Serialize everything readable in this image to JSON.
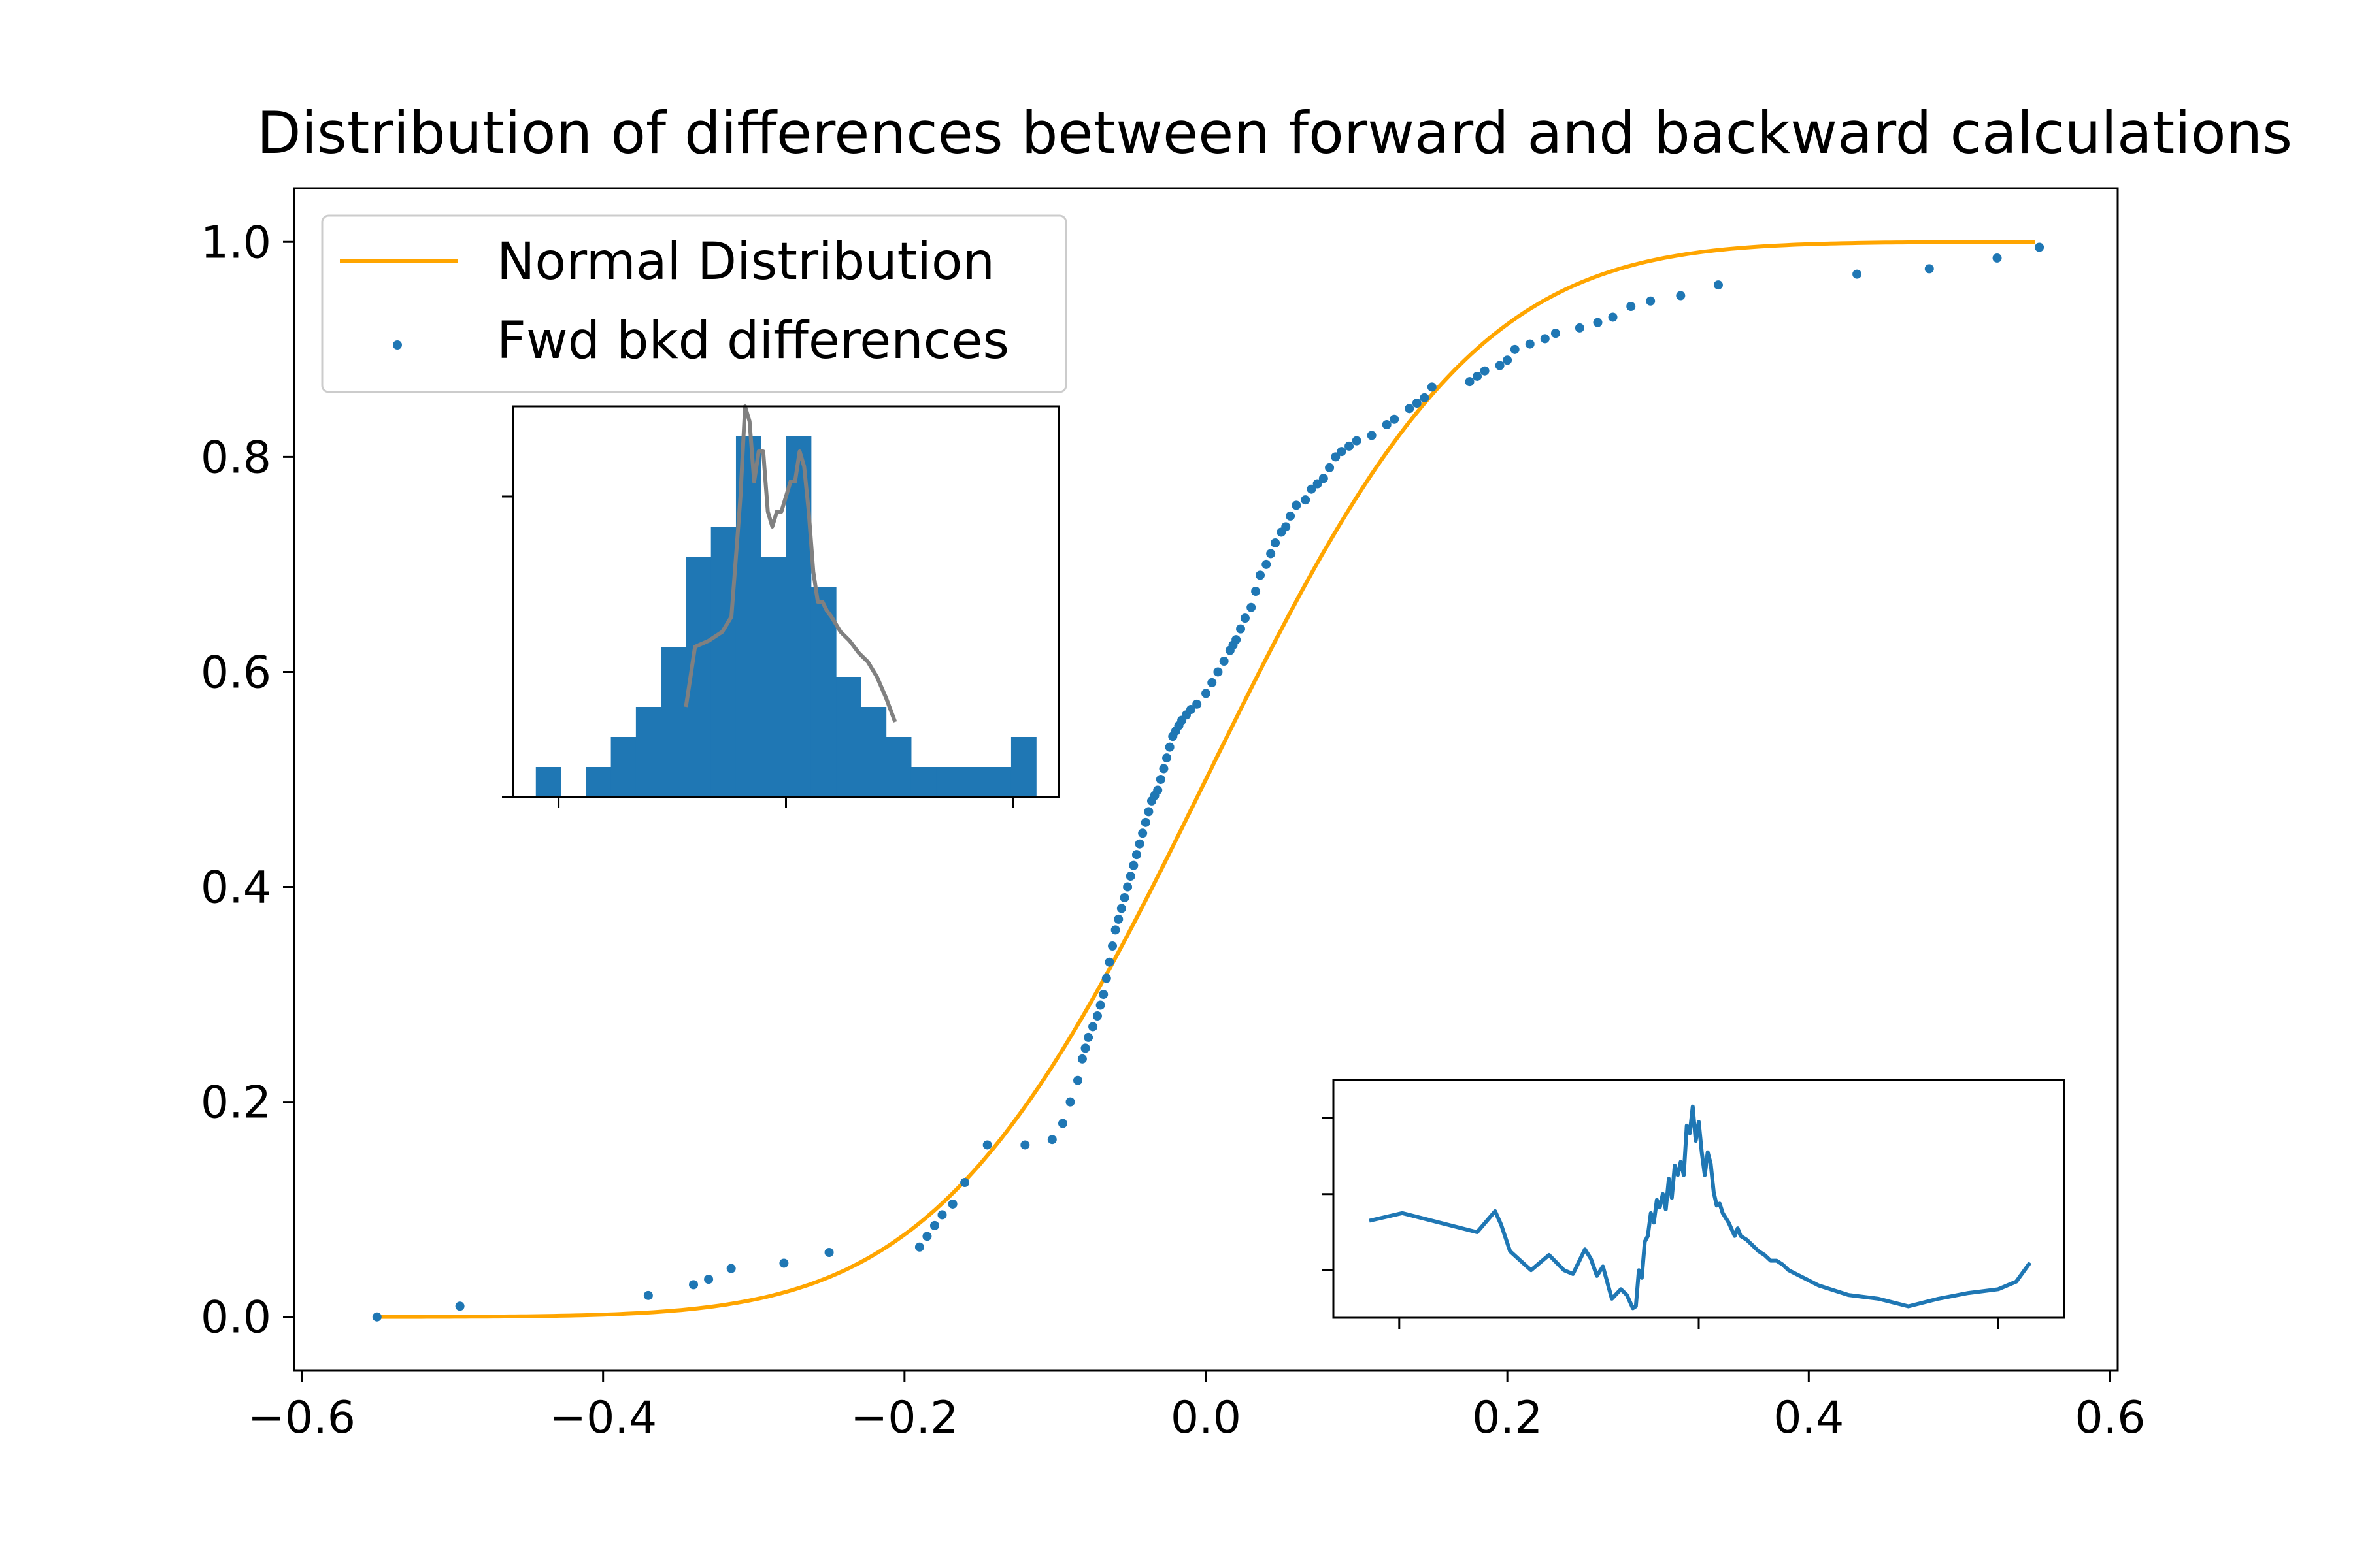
{
  "chart_data": {
    "type": "line",
    "title": "Distribution of differences between forward and backward calculations",
    "xlabel": "",
    "ylabel": "",
    "xlim": [
      -0.605,
      0.605
    ],
    "ylim": [
      -0.05,
      1.05
    ],
    "x_ticks": [
      -0.6,
      -0.4,
      -0.2,
      0.0,
      0.2,
      0.4,
      0.6
    ],
    "x_tick_labels": [
      "−0.6",
      "−0.4",
      "−0.2",
      "0.0",
      "0.2",
      "0.4",
      "0.6"
    ],
    "y_ticks": [
      0.0,
      0.2,
      0.4,
      0.6,
      0.8,
      1.0
    ],
    "y_tick_labels": [
      "0.0",
      "0.2",
      "0.4",
      "0.6",
      "0.8",
      "1.0"
    ],
    "legend_position": "upper-left",
    "colors": {
      "normal": "#FFA500",
      "points": "#1f77b4",
      "kde": "#808080",
      "hist": "#1f77b4"
    },
    "series": [
      {
        "name": "Normal Distribution",
        "kind": "line",
        "mean": 0.0,
        "std": 0.14,
        "x_range": [
          -0.55,
          0.55
        ]
      },
      {
        "name": "Fwd bkd differences",
        "kind": "scatter",
        "x": [
          -0.55,
          -0.495,
          -0.37,
          -0.34,
          -0.33,
          -0.315,
          -0.28,
          -0.25,
          -0.19,
          -0.185,
          -0.18,
          -0.175,
          -0.168,
          -0.16,
          -0.145,
          -0.12,
          -0.102,
          -0.095,
          -0.09,
          -0.085,
          -0.082,
          -0.08,
          -0.078,
          -0.075,
          -0.072,
          -0.07,
          -0.068,
          -0.066,
          -0.064,
          -0.062,
          -0.06,
          -0.058,
          -0.056,
          -0.054,
          -0.052,
          -0.05,
          -0.048,
          -0.046,
          -0.044,
          -0.042,
          -0.04,
          -0.038,
          -0.036,
          -0.034,
          -0.032,
          -0.03,
          -0.028,
          -0.026,
          -0.024,
          -0.022,
          -0.02,
          -0.018,
          -0.016,
          -0.013,
          -0.01,
          -0.006,
          0.0,
          0.004,
          0.008,
          0.012,
          0.016,
          0.018,
          0.02,
          0.023,
          0.026,
          0.03,
          0.033,
          0.036,
          0.04,
          0.043,
          0.046,
          0.05,
          0.053,
          0.056,
          0.06,
          0.066,
          0.07,
          0.074,
          0.078,
          0.082,
          0.086,
          0.09,
          0.095,
          0.1,
          0.11,
          0.12,
          0.125,
          0.135,
          0.14,
          0.145,
          0.15,
          0.175,
          0.18,
          0.185,
          0.195,
          0.2,
          0.205,
          0.215,
          0.225,
          0.232,
          0.248,
          0.26,
          0.27,
          0.282,
          0.295,
          0.315,
          0.34,
          0.432,
          0.48,
          0.525,
          0.553
        ],
        "y": [
          0.0,
          0.01,
          0.02,
          0.03,
          0.035,
          0.045,
          0.05,
          0.06,
          0.065,
          0.075,
          0.085,
          0.095,
          0.105,
          0.125,
          0.16,
          0.16,
          0.165,
          0.18,
          0.2,
          0.22,
          0.24,
          0.25,
          0.26,
          0.27,
          0.28,
          0.29,
          0.3,
          0.315,
          0.33,
          0.345,
          0.36,
          0.37,
          0.38,
          0.39,
          0.4,
          0.41,
          0.42,
          0.43,
          0.44,
          0.45,
          0.46,
          0.47,
          0.48,
          0.485,
          0.49,
          0.5,
          0.51,
          0.52,
          0.53,
          0.54,
          0.545,
          0.55,
          0.555,
          0.56,
          0.565,
          0.57,
          0.58,
          0.59,
          0.6,
          0.61,
          0.62,
          0.625,
          0.63,
          0.64,
          0.65,
          0.66,
          0.675,
          0.69,
          0.7,
          0.71,
          0.72,
          0.73,
          0.735,
          0.745,
          0.755,
          0.76,
          0.77,
          0.775,
          0.78,
          0.79,
          0.8,
          0.805,
          0.81,
          0.815,
          0.82,
          0.83,
          0.835,
          0.845,
          0.85,
          0.855,
          0.865,
          0.87,
          0.875,
          0.88,
          0.885,
          0.89,
          0.9,
          0.905,
          0.91,
          0.915,
          0.92,
          0.925,
          0.93,
          0.94,
          0.945,
          0.95,
          0.96,
          0.97,
          0.975,
          0.985,
          0.995
        ]
      }
    ],
    "insets": [
      {
        "type": "histogram",
        "position": "upper-left",
        "xlim": [
          -0.6,
          0.6
        ],
        "x_ticks": [
          -0.5,
          0.0,
          0.5
        ],
        "ylim": [
          0,
          13
        ],
        "y_ticks": [
          0,
          10
        ],
        "bins": [
          {
            "x0": -0.55,
            "x1": -0.495,
            "count": 1
          },
          {
            "x0": -0.495,
            "x1": -0.44,
            "count": 0
          },
          {
            "x0": -0.44,
            "x1": -0.385,
            "count": 1
          },
          {
            "x0": -0.385,
            "x1": -0.33,
            "count": 2
          },
          {
            "x0": -0.33,
            "x1": -0.275,
            "count": 3
          },
          {
            "x0": -0.275,
            "x1": -0.22,
            "count": 5
          },
          {
            "x0": -0.22,
            "x1": -0.165,
            "count": 8
          },
          {
            "x0": -0.165,
            "x1": -0.11,
            "count": 9
          },
          {
            "x0": -0.11,
            "x1": -0.055,
            "count": 12
          },
          {
            "x0": -0.055,
            "x1": 0.0,
            "count": 8
          },
          {
            "x0": 0.0,
            "x1": 0.055,
            "count": 12
          },
          {
            "x0": 0.055,
            "x1": 0.11,
            "count": 7
          },
          {
            "x0": 0.11,
            "x1": 0.165,
            "count": 4
          },
          {
            "x0": 0.165,
            "x1": 0.22,
            "count": 3
          },
          {
            "x0": 0.22,
            "x1": 0.275,
            "count": 2
          },
          {
            "x0": 0.275,
            "x1": 0.33,
            "count": 1
          },
          {
            "x0": 0.33,
            "x1": 0.385,
            "count": 1
          },
          {
            "x0": 0.385,
            "x1": 0.44,
            "count": 1
          },
          {
            "x0": 0.44,
            "x1": 0.495,
            "count": 1
          },
          {
            "x0": 0.495,
            "x1": 0.55,
            "count": 2
          }
        ],
        "density_line": {
          "x": [
            -0.22,
            -0.21,
            -0.2,
            -0.17,
            -0.14,
            -0.12,
            -0.11,
            -0.1,
            -0.09,
            -0.08,
            -0.07,
            -0.06,
            -0.05,
            -0.04,
            -0.03,
            -0.02,
            -0.01,
            0.0,
            0.01,
            0.02,
            0.03,
            0.04,
            0.05,
            0.06,
            0.07,
            0.08,
            0.09,
            0.1,
            0.12,
            0.14,
            0.16,
            0.18,
            0.2,
            0.22,
            0.24
          ],
          "y": [
            3.0,
            4.0,
            5.0,
            5.2,
            5.5,
            6.0,
            8.0,
            10.0,
            13.0,
            12.5,
            10.5,
            11.5,
            11.5,
            9.5,
            9.0,
            9.5,
            9.5,
            10.0,
            10.5,
            10.5,
            11.5,
            11.0,
            9.5,
            7.5,
            6.5,
            6.5,
            6.2,
            6.0,
            5.5,
            5.2,
            4.8,
            4.5,
            4.0,
            3.3,
            2.5
          ]
        }
      },
      {
        "type": "line",
        "position": "lower-right",
        "xlim": [
          -0.61,
          0.61
        ],
        "x_ticks": [
          -0.5,
          0.0,
          0.5
        ],
        "ylim": [
          -0.025,
          0.1
        ],
        "y_ticks": [
          0.0,
          0.04,
          0.08
        ],
        "x": [
          -0.55,
          -0.495,
          -0.37,
          -0.34,
          -0.33,
          -0.315,
          -0.28,
          -0.25,
          -0.225,
          -0.21,
          -0.19,
          -0.18,
          -0.17,
          -0.16,
          -0.145,
          -0.13,
          -0.12,
          -0.11,
          -0.105,
          -0.1,
          -0.095,
          -0.09,
          -0.085,
          -0.08,
          -0.075,
          -0.07,
          -0.065,
          -0.06,
          -0.055,
          -0.05,
          -0.045,
          -0.04,
          -0.035,
          -0.03,
          -0.025,
          -0.02,
          -0.015,
          -0.01,
          -0.005,
          0.0,
          0.005,
          0.01,
          0.015,
          0.02,
          0.025,
          0.03,
          0.035,
          0.04,
          0.05,
          0.06,
          0.065,
          0.07,
          0.08,
          0.09,
          0.1,
          0.11,
          0.12,
          0.13,
          0.14,
          0.15,
          0.175,
          0.2,
          0.25,
          0.3,
          0.35,
          0.4,
          0.45,
          0.5,
          0.53,
          0.553
        ],
        "y": [
          0.026,
          0.03,
          0.02,
          0.031,
          0.024,
          0.01,
          0.0,
          0.008,
          0.0,
          -0.002,
          0.011,
          0.006,
          -0.003,
          0.002,
          -0.015,
          -0.01,
          -0.013,
          -0.02,
          -0.019,
          0.0,
          -0.004,
          0.015,
          0.018,
          0.03,
          0.025,
          0.037,
          0.033,
          0.04,
          0.032,
          0.048,
          0.038,
          0.055,
          0.05,
          0.057,
          0.05,
          0.076,
          0.072,
          0.086,
          0.068,
          0.078,
          0.062,
          0.05,
          0.062,
          0.056,
          0.041,
          0.034,
          0.035,
          0.03,
          0.025,
          0.018,
          0.022,
          0.018,
          0.016,
          0.013,
          0.01,
          0.008,
          0.005,
          0.005,
          0.003,
          0.0,
          -0.004,
          -0.008,
          -0.013,
          -0.015,
          -0.019,
          -0.015,
          -0.012,
          -0.01,
          -0.006,
          0.004
        ]
      }
    ]
  }
}
